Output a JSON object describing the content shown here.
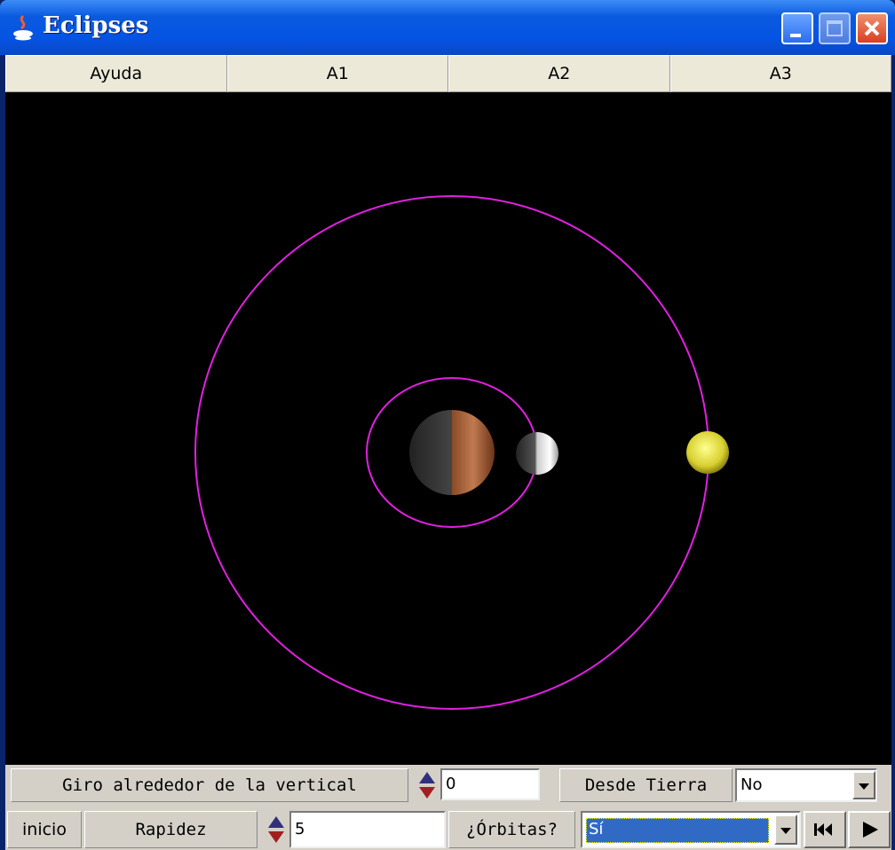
{
  "window": {
    "title": "Eclipses"
  },
  "tabs": [
    "Ayuda",
    "A1",
    "A2",
    "A3"
  ],
  "controls": {
    "rotation_label": "Giro alrededor de la vertical",
    "rotation_value": "0",
    "view_label": "Desde Tierra",
    "view_value": "No",
    "reset_button": "inicio",
    "speed_label": "Rapidez",
    "speed_value": "5",
    "orbits_label": "¿Órbitas?",
    "orbits_value": "Sí"
  }
}
